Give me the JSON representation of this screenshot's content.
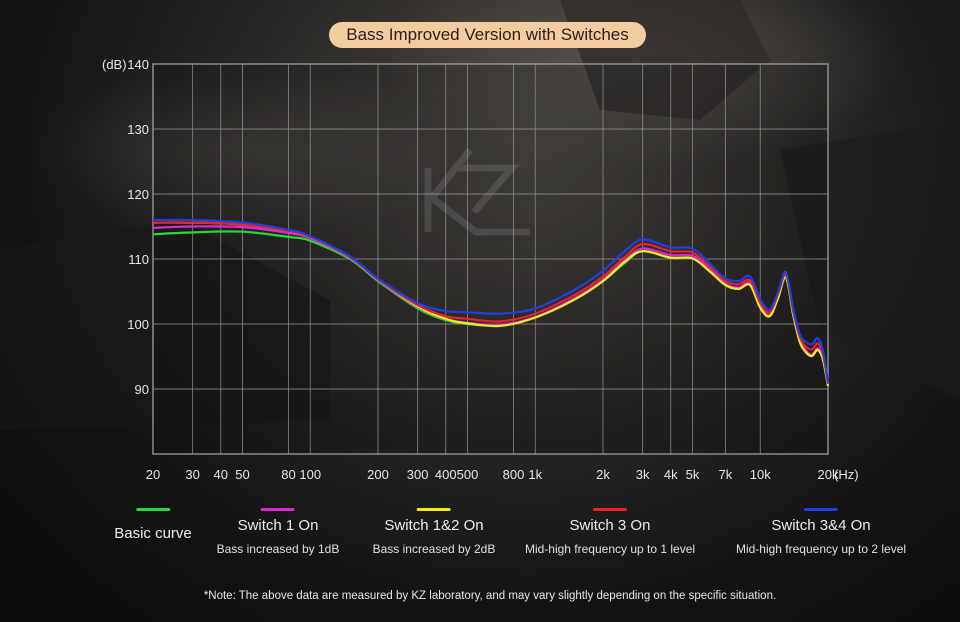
{
  "chart_data": {
    "type": "line",
    "title": "Bass Improved Version with Switches",
    "ylabel": "(dB)",
    "xlabel": "(Hz)",
    "x_scale": "log",
    "xlim": [
      20,
      20000
    ],
    "ylim": [
      80,
      140
    ],
    "yticks": [
      90,
      100,
      110,
      120,
      130,
      140
    ],
    "xticks": [
      {
        "v": 20,
        "l": "20"
      },
      {
        "v": 30,
        "l": "30"
      },
      {
        "v": 40,
        "l": "40"
      },
      {
        "v": 50,
        "l": "50"
      },
      {
        "v": 80,
        "l": "80"
      },
      {
        "v": 100,
        "l": "100"
      },
      {
        "v": 200,
        "l": "200"
      },
      {
        "v": 300,
        "l": "300"
      },
      {
        "v": 400,
        "l": "400"
      },
      {
        "v": 500,
        "l": "500"
      },
      {
        "v": 800,
        "l": "800"
      },
      {
        "v": 1000,
        "l": "1k"
      },
      {
        "v": 2000,
        "l": "2k"
      },
      {
        "v": 3000,
        "l": "3k"
      },
      {
        "v": 4000,
        "l": "4k"
      },
      {
        "v": 5000,
        "l": "5k"
      },
      {
        "v": 7000,
        "l": "7k"
      },
      {
        "v": 10000,
        "l": "10k"
      },
      {
        "v": 20000,
        "l": "20k"
      }
    ],
    "grid": true,
    "legend_placement": "bottom",
    "x": [
      20,
      30,
      50,
      80,
      100,
      150,
      200,
      300,
      400,
      500,
      700,
      1000,
      1500,
      2000,
      2500,
      3000,
      4000,
      5000,
      6000,
      7000,
      8000,
      9000,
      10000,
      11000,
      12000,
      13000,
      14000,
      15000,
      16000,
      17000,
      18000,
      19000,
      20000
    ],
    "series": [
      {
        "name": "Basic curve",
        "color": "#27d83a",
        "values": [
          113.8,
          114.1,
          114.2,
          113.4,
          112.8,
          110.0,
          106.6,
          102.4,
          100.6,
          100.0,
          99.8,
          101.0,
          103.8,
          106.6,
          109.4,
          111.2,
          110.2,
          110.1,
          108.0,
          106.0,
          105.4,
          106.0,
          102.5,
          101.2,
          104.0,
          107.2,
          101.5,
          97.2,
          95.6,
          95.1,
          96.0,
          94.5,
          90.5
        ]
      },
      {
        "name": "Switch 1 On",
        "color": "#d92ad2",
        "values": [
          114.8,
          115.0,
          114.9,
          114.0,
          113.2,
          110.2,
          106.8,
          102.6,
          100.8,
          100.2,
          99.9,
          101.1,
          104.0,
          106.8,
          109.8,
          111.6,
          110.6,
          110.5,
          108.3,
          106.2,
          105.6,
          106.3,
          102.8,
          101.4,
          104.2,
          107.4,
          101.7,
          97.5,
          95.9,
          95.3,
          96.3,
          94.7,
          90.6
        ]
      },
      {
        "name": "Switch 1&2 On",
        "color": "#f0ea25",
        "values": [
          115.6,
          115.6,
          115.3,
          114.3,
          113.4,
          110.3,
          106.9,
          102.7,
          100.8,
          100.1,
          99.7,
          101.0,
          103.8,
          106.6,
          109.6,
          111.2,
          110.2,
          110.1,
          108.0,
          106.0,
          105.4,
          106.0,
          102.5,
          101.2,
          104.0,
          107.2,
          101.5,
          97.2,
          95.6,
          95.1,
          96.0,
          94.5,
          90.5
        ]
      },
      {
        "name": "Switch 3 On",
        "color": "#e8232a",
        "values": [
          115.6,
          115.6,
          115.3,
          114.3,
          113.4,
          110.3,
          106.9,
          102.9,
          101.2,
          100.8,
          100.4,
          101.6,
          104.5,
          107.3,
          110.3,
          112.3,
          111.2,
          111.0,
          108.7,
          106.6,
          106.1,
          106.7,
          103.2,
          101.8,
          104.6,
          107.6,
          102.0,
          97.9,
          96.5,
          96.1,
          97.0,
          95.2,
          90.8
        ]
      },
      {
        "name": "Switch 3&4 On",
        "color": "#1f3fe6",
        "values": [
          116.0,
          116.0,
          115.6,
          114.5,
          113.5,
          110.4,
          107.0,
          103.2,
          102.0,
          101.8,
          101.6,
          102.4,
          105.3,
          108.2,
          111.2,
          113.0,
          111.8,
          111.6,
          109.2,
          107.0,
          106.6,
          107.3,
          103.8,
          102.2,
          104.9,
          108.0,
          102.4,
          98.4,
          97.2,
          96.9,
          97.8,
          95.8,
          91.0
        ]
      }
    ]
  },
  "legend": [
    {
      "name": "Basic curve",
      "desc": "",
      "color": "#27d83a"
    },
    {
      "name": "Switch 1 On",
      "desc": "Bass increased by 1dB",
      "color": "#d92ad2"
    },
    {
      "name": "Switch 1&2 On",
      "desc": "Bass increased by 2dB",
      "color": "#f0ea25"
    },
    {
      "name": "Switch 3 On",
      "desc": "Mid-high frequency up to 1 level",
      "color": "#e8232a"
    },
    {
      "name": "Switch 3&4 On",
      "desc": "Mid-high frequency up to 2 level",
      "color": "#1f3fe6"
    }
  ],
  "note": "*Note: The above data are measured by KZ laboratory, and may vary slightly depending on the specific situation.",
  "watermark": "KZ logo"
}
